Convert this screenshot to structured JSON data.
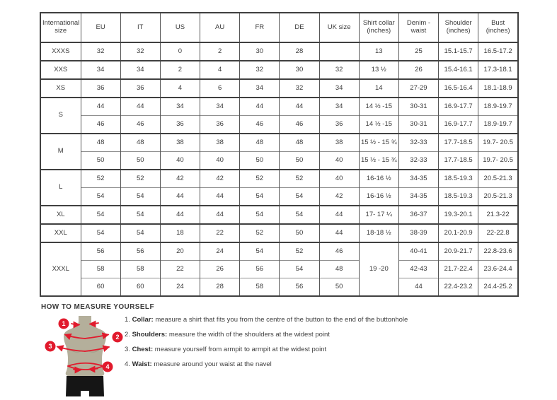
{
  "table": {
    "headers": [
      "International size",
      "EU",
      "IT",
      "US",
      "AU",
      "FR",
      "DE",
      "UK size",
      "Shirt collar (inches)",
      "Denim - waist",
      "Shoulder (inches)",
      "Bust (inches)"
    ],
    "rows": [
      [
        "XXXS",
        "32",
        "32",
        "0",
        "2",
        "30",
        "28",
        "",
        "13",
        "25",
        "15.1-15.7",
        "16.5-17.2"
      ],
      [
        "XXS",
        "34",
        "34",
        "2",
        "4",
        "32",
        "30",
        "32",
        "13 ½",
        "26",
        "15.4-16.1",
        "17.3-18.1"
      ],
      [
        "XS",
        "36",
        "36",
        "4",
        "6",
        "34",
        "32",
        "34",
        "14",
        "27-29",
        "16.5-16.4",
        "18.1-18.9"
      ],
      [
        {
          "t": "S",
          "rs": 2
        },
        "44",
        "44",
        "34",
        "34",
        "44",
        "44",
        "34",
        "14 ½ -15",
        "30-31",
        "16.9-17.7",
        "18.9-19.7"
      ],
      [
        "46",
        "46",
        "36",
        "36",
        "46",
        "46",
        "36",
        "14 ½ -15",
        "30-31",
        "16.9-17.7",
        "18.9-19.7"
      ],
      [
        {
          "t": "M",
          "rs": 2
        },
        "48",
        "48",
        "38",
        "38",
        "48",
        "48",
        "38",
        "15 ½ - 15 ¾",
        "32-33",
        "17.7-18.5",
        "19.7- 20.5"
      ],
      [
        "50",
        "50",
        "40",
        "40",
        "50",
        "50",
        "40",
        "15 ½ - 15 ¾",
        "32-33",
        "17.7-18.5",
        "19.7- 20.5"
      ],
      [
        {
          "t": "L",
          "rs": 2
        },
        "52",
        "52",
        "42",
        "42",
        "52",
        "52",
        "40",
        "16-16 ½",
        "34-35",
        "18.5-19.3",
        "20.5-21.3"
      ],
      [
        "54",
        "54",
        "44",
        "44",
        "54",
        "54",
        "42",
        "16-16 ½",
        "34-35",
        "18.5-19.3",
        "20.5-21.3"
      ],
      [
        "XL",
        "54",
        "54",
        "44",
        "44",
        "54",
        "54",
        "44",
        "17- 17 ¼",
        "36-37",
        "19.3-20.1",
        "21.3-22"
      ],
      [
        "XXL",
        "54",
        "54",
        "18",
        "22",
        "52",
        "50",
        "44",
        "18-18 ½",
        "38-39",
        "20.1-20.9",
        "22-22.8"
      ],
      [
        {
          "t": "XXXL",
          "rs": 3
        },
        "56",
        "56",
        "20",
        "24",
        "54",
        "52",
        "46",
        {
          "t": "19 -20",
          "rs": 3
        },
        "40-41",
        "20.9-21.7",
        "22.8-23.6"
      ],
      [
        "58",
        "58",
        "22",
        "26",
        "56",
        "54",
        "48",
        "42-43",
        "21.7-22.4",
        "23.6-24.4"
      ],
      [
        "60",
        "60",
        "24",
        "28",
        "58",
        "56",
        "50",
        "44",
        "22.4-23.2",
        "24.4-25.2"
      ]
    ]
  },
  "measure": {
    "heading": "HOW TO MEASURE YOURSELF",
    "steps": [
      {
        "num": "1.",
        "label": "Collar:",
        "text": "measure a shirt that fits you from the centre of the button to the end of the buttonhole"
      },
      {
        "num": "2.",
        "label": "Shoulders:",
        "text": "measure the width of the shoulders at the widest point"
      },
      {
        "num": "3.",
        "label": "Chest:",
        "text": "measure yourself from armpit to armpit at the widest point"
      },
      {
        "num": "4.",
        "label": "Waist:",
        "text": "measure around your waist at the navel"
      }
    ],
    "figure_badges": [
      "1",
      "2",
      "3",
      "4"
    ]
  },
  "colors": {
    "accent_red": "#e11a2c",
    "mannequin": "#b4af9b",
    "shorts": "#151515",
    "border_dark": "#404040"
  }
}
